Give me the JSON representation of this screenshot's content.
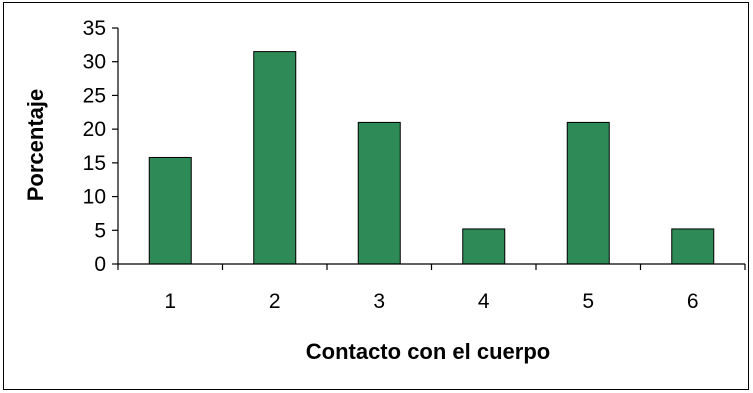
{
  "chart_data": {
    "type": "bar",
    "title": "",
    "xlabel": "Contacto con el cuerpo",
    "ylabel": "Porcentaje",
    "categories": [
      "1",
      "2",
      "3",
      "4",
      "5",
      "6"
    ],
    "values": [
      15.8,
      31.5,
      21.0,
      5.2,
      21.0,
      5.2
    ],
    "ylim": [
      0,
      35
    ],
    "yticks": [
      "0",
      "5",
      "10",
      "15",
      "20",
      "25",
      "30",
      "35"
    ],
    "grid": false,
    "legend": "none",
    "bar_color": "#2e8b57"
  }
}
